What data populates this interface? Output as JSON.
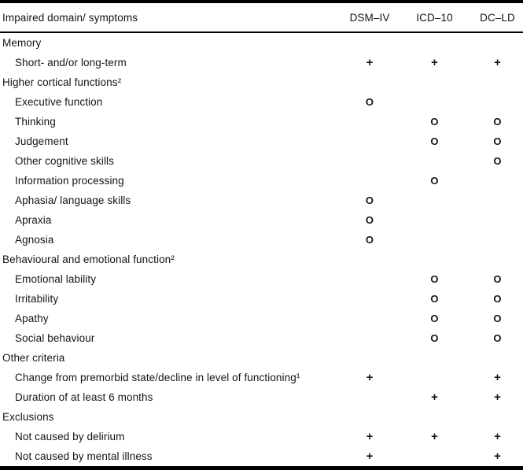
{
  "table": {
    "title_column_header": "Impaired domain/ symptoms",
    "column_headers": [
      "DSM–IV",
      "ICD–10",
      "DC–LD"
    ],
    "legend": {
      "criterion_present": "+",
      "optional_criterion": "O"
    },
    "rows": [
      {
        "type": "section",
        "label": "Memory",
        "dsm_iv": "",
        "icd_10": "",
        "dc_ld": ""
      },
      {
        "type": "item",
        "label": "Short- and/or long-term",
        "dsm_iv": "+",
        "icd_10": "+",
        "dc_ld": "+"
      },
      {
        "type": "section",
        "label": "Higher cortical functions²",
        "dsm_iv": "",
        "icd_10": "",
        "dc_ld": ""
      },
      {
        "type": "item",
        "label": "Executive function",
        "dsm_iv": "O",
        "icd_10": "",
        "dc_ld": ""
      },
      {
        "type": "item",
        "label": "Thinking",
        "dsm_iv": "",
        "icd_10": "O",
        "dc_ld": "O"
      },
      {
        "type": "item",
        "label": "Judgement",
        "dsm_iv": "",
        "icd_10": "O",
        "dc_ld": "O"
      },
      {
        "type": "item",
        "label": "Other cognitive skills",
        "dsm_iv": "",
        "icd_10": "",
        "dc_ld": "O"
      },
      {
        "type": "item",
        "label": "Information processing",
        "dsm_iv": "",
        "icd_10": "O",
        "dc_ld": ""
      },
      {
        "type": "item",
        "label": "Aphasia/ language skills",
        "dsm_iv": "O",
        "icd_10": "",
        "dc_ld": ""
      },
      {
        "type": "item",
        "label": "Apraxia",
        "dsm_iv": "O",
        "icd_10": "",
        "dc_ld": ""
      },
      {
        "type": "item",
        "label": "Agnosia",
        "dsm_iv": "O",
        "icd_10": "",
        "dc_ld": ""
      },
      {
        "type": "section",
        "label": "Behavioural and emotional function²",
        "dsm_iv": "",
        "icd_10": "",
        "dc_ld": ""
      },
      {
        "type": "item",
        "label": "Emotional lability",
        "dsm_iv": "",
        "icd_10": "O",
        "dc_ld": "O"
      },
      {
        "type": "item",
        "label": "Irritability",
        "dsm_iv": "",
        "icd_10": "O",
        "dc_ld": "O"
      },
      {
        "type": "item",
        "label": "Apathy",
        "dsm_iv": "",
        "icd_10": "O",
        "dc_ld": "O"
      },
      {
        "type": "item",
        "label": "Social behaviour",
        "dsm_iv": "",
        "icd_10": "O",
        "dc_ld": "O"
      },
      {
        "type": "section",
        "label": "Other criteria",
        "dsm_iv": "",
        "icd_10": "",
        "dc_ld": ""
      },
      {
        "type": "item",
        "label": "Change from premorbid state/decline in level of functioning¹",
        "dsm_iv": "+",
        "icd_10": "",
        "dc_ld": "+"
      },
      {
        "type": "item",
        "label": "Duration of at least 6 months",
        "dsm_iv": "",
        "icd_10": "+",
        "dc_ld": "+"
      },
      {
        "type": "section",
        "label": "Exclusions",
        "dsm_iv": "",
        "icd_10": "",
        "dc_ld": ""
      },
      {
        "type": "item",
        "label": "Not caused by delirium",
        "dsm_iv": "+",
        "icd_10": "+",
        "dc_ld": "+"
      },
      {
        "type": "item",
        "label": "Not caused by mental illness",
        "dsm_iv": "+",
        "icd_10": "",
        "dc_ld": "+"
      }
    ]
  },
  "colors": {
    "text": "#141414",
    "rule": "#000000",
    "background": "#ffffff"
  }
}
